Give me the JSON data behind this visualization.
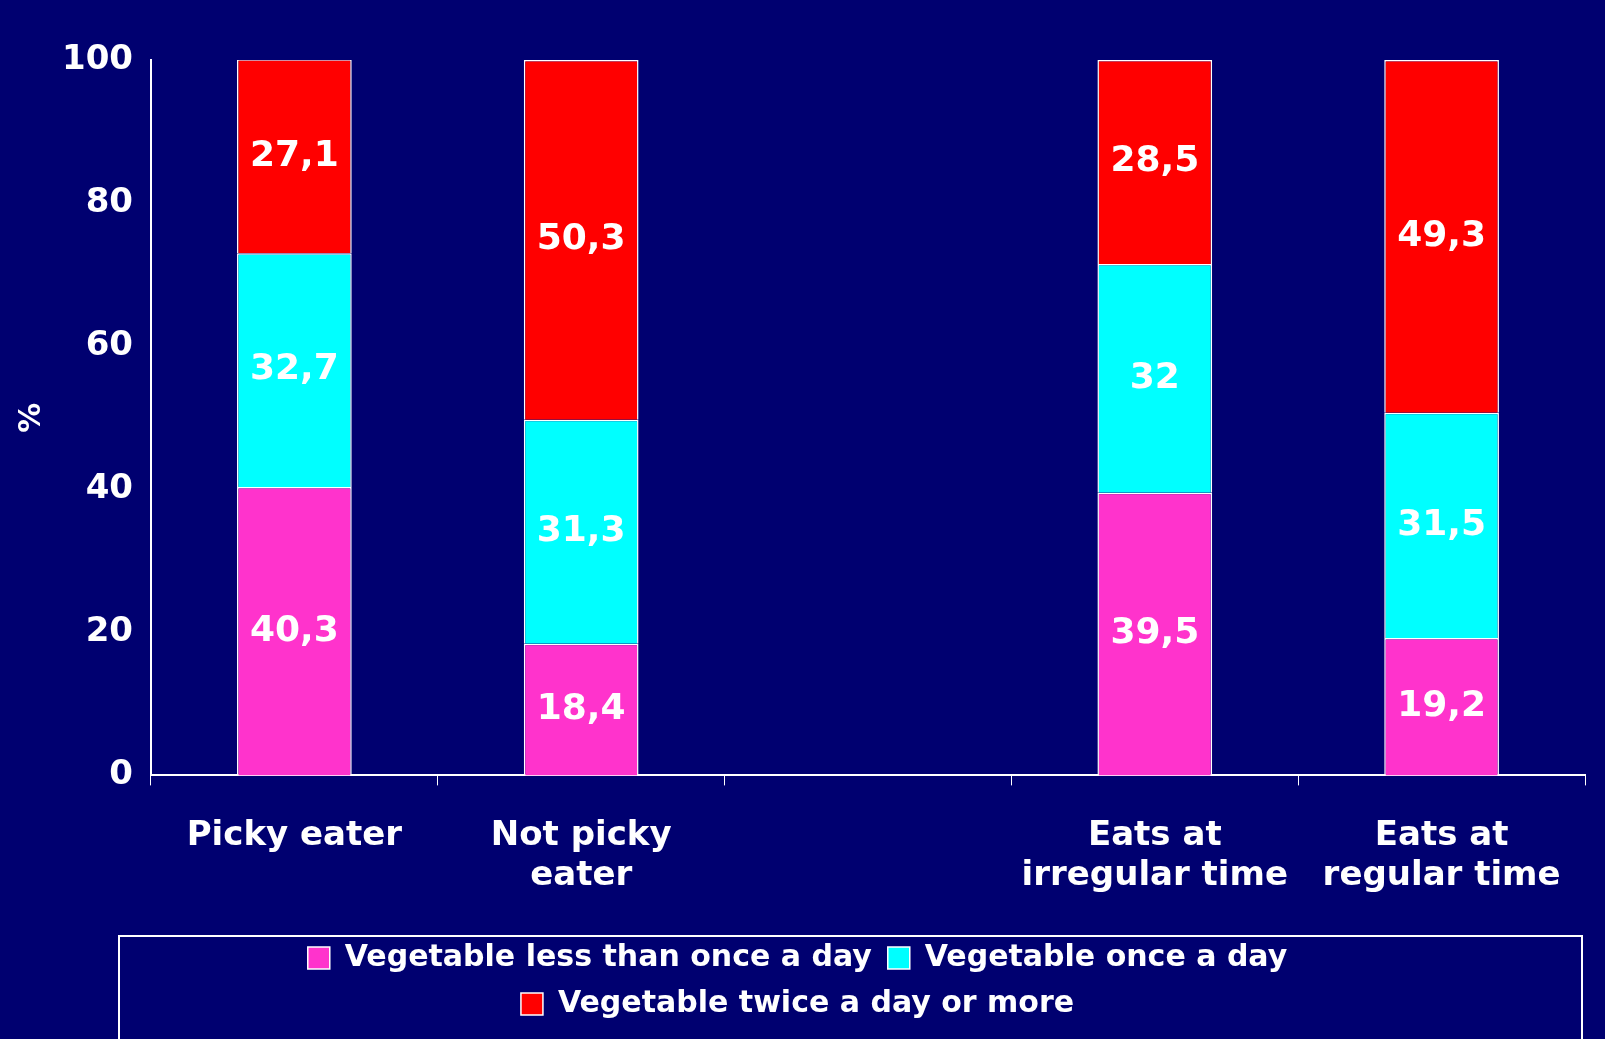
{
  "chart_data": {
    "type": "bar",
    "stacked": true,
    "ylabel": "%",
    "categories": [
      "Picky eater",
      "Not picky eater",
      null,
      "Eats at irregular time",
      "Eats at regular time"
    ],
    "series": [
      {
        "name": "Vegetable less than once a day",
        "color": "#ff33cc",
        "values": [
          40.3,
          18.4,
          null,
          39.5,
          19.2
        ],
        "value_labels": [
          "40,3",
          "18,4",
          null,
          "39,5",
          "19,2"
        ]
      },
      {
        "name": "Vegetable once a day",
        "color": "#00ffff",
        "values": [
          32.7,
          31.3,
          null,
          32,
          31.5
        ],
        "value_labels": [
          "32,7",
          "31,3",
          null,
          "32",
          "31,5"
        ]
      },
      {
        "name": "Vegetable twice a day or more",
        "color": "#ff0000",
        "values": [
          27.1,
          50.3,
          null,
          28.5,
          49.3
        ],
        "value_labels": [
          "27,1",
          "50,3",
          null,
          "28,5",
          "49,3"
        ]
      }
    ],
    "ylim": [
      0,
      100
    ],
    "yticks": [
      0,
      20,
      40,
      60,
      80,
      100
    ],
    "grid": false,
    "legend": "bottom"
  }
}
